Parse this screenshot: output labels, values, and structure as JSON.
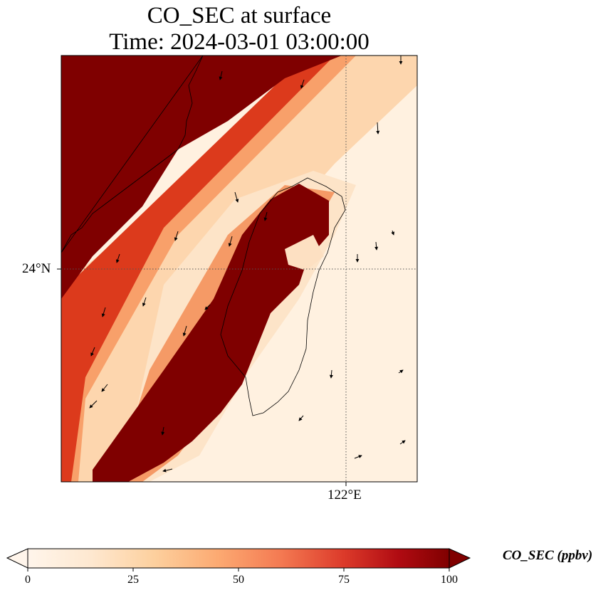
{
  "title": {
    "line1": "CO_SEC at surface",
    "line2": "Time: 2024-03-01 03:00:00"
  },
  "axes": {
    "lat_label": "24°N",
    "lon_label": "122°E"
  },
  "colorbar": {
    "label": "CO_SEC (ppbv)",
    "ticks": [
      "0",
      "25",
      "50",
      "75",
      "100"
    ],
    "min": 0,
    "max": 100,
    "colormap": [
      "#fff5eb",
      "#fee6ce",
      "#fdd0a2",
      "#fdae6b",
      "#fd8d3c",
      "#f16913",
      "#d94801",
      "#a63603",
      "#7f2704"
    ],
    "extend": "both"
  },
  "map": {
    "field": "CO_SEC",
    "level": "surface",
    "units": "ppbv",
    "region": "Taiwan and southeast China coast",
    "gridlines": {
      "latitude": 24,
      "longitude": 122,
      "style": "dotted"
    },
    "vector_overlay": "wind arrows"
  }
}
